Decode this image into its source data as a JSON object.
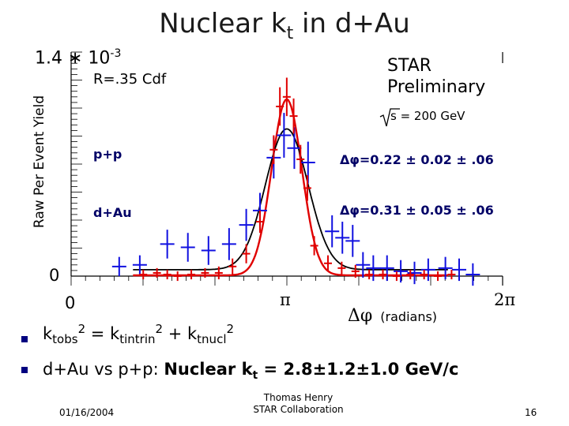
{
  "slide": {
    "title_main": "Nuclear k",
    "title_sub": "t",
    "title_rest": " in d+Au",
    "y_exponent_base": "1.4 ∗ 10",
    "y_exponent_power": "-3",
    "star_line1": "STAR",
    "star_line2": "Preliminary",
    "energy_label": "s = 200 GeV",
    "r_cdf": "R=.35 Cdf",
    "legend_pp": "p+p",
    "legend_dau": "d+Au",
    "dphi_pp": "Δφ=0.22 ± 0.02 ± .06",
    "dphi_dau": "Δφ=0.31 ± 0.05 ± .06",
    "bullet1": {
      "k1": "k",
      "s1": "tobs",
      "p1": "2",
      "eq": " = k",
      "s2": "tintrin",
      "p2": "2",
      "plus": " + k",
      "s3": "tnucl",
      "p3": "2"
    },
    "bullet2": {
      "normal": "d+Au vs p+p:  ",
      "bold1": "Nuclear k",
      "sub": "t",
      "bold2": " = 2.8±1.2±1.0 GeV/c"
    },
    "date": "01/16/2004",
    "author": "Thomas Henry",
    "collab": "STAR Collaboration",
    "page_number": "16"
  },
  "chart_data": {
    "type": "scatter",
    "title": "Nuclear kt in d+Au",
    "ylabel": "Raw Per Event Yield",
    "xlabel": "Δφ (radians)",
    "x_tick_labels": [
      "0",
      "π",
      "2π"
    ],
    "y_tick_labels": [
      "0"
    ],
    "xlim": [
      0,
      6.2832
    ],
    "ylim": [
      0,
      1.4
    ],
    "y_scale_note": "×10^-3",
    "series": [
      {
        "name": "p+p",
        "color": "#e00000",
        "x": [
          1.05,
          1.25,
          1.4,
          1.55,
          1.75,
          1.95,
          2.15,
          2.35,
          2.55,
          2.75,
          2.95,
          3.04,
          3.14,
          3.24,
          3.34,
          3.44,
          3.54,
          3.74,
          3.94,
          4.14,
          4.34,
          4.54,
          4.74,
          4.94,
          5.14,
          5.34,
          5.54
        ],
        "y": [
          0.01,
          0.02,
          0.01,
          0.0,
          0.01,
          0.02,
          0.02,
          0.06,
          0.14,
          0.34,
          0.79,
          1.06,
          1.12,
          1.0,
          0.73,
          0.55,
          0.19,
          0.08,
          0.05,
          0.03,
          0.01,
          0.01,
          0.0,
          0.01,
          0.01,
          0.0,
          0.01
        ],
        "yerr": [
          0.03,
          0.03,
          0.03,
          0.03,
          0.03,
          0.03,
          0.04,
          0.05,
          0.06,
          0.07,
          0.09,
          0.12,
          0.12,
          0.11,
          0.09,
          0.08,
          0.06,
          0.05,
          0.04,
          0.04,
          0.03,
          0.03,
          0.03,
          0.03,
          0.03,
          0.03,
          0.03
        ]
      },
      {
        "name": "d+Au",
        "color": "#1010e0",
        "x": [
          0.7,
          1.0,
          1.4,
          1.7,
          2.0,
          2.3,
          2.55,
          2.75,
          2.95,
          3.1,
          3.25,
          3.45,
          3.8,
          3.95,
          4.1,
          4.25,
          4.4,
          4.6,
          4.8,
          5.0,
          5.2,
          5.45,
          5.65,
          5.85
        ],
        "y": [
          0.06,
          0.07,
          0.2,
          0.18,
          0.16,
          0.2,
          0.32,
          0.41,
          0.74,
          0.88,
          0.8,
          0.71,
          0.28,
          0.24,
          0.22,
          0.07,
          0.05,
          0.05,
          0.03,
          0.02,
          0.04,
          0.05,
          0.04,
          0.01
        ],
        "yerr": [
          0.06,
          0.06,
          0.09,
          0.09,
          0.09,
          0.1,
          0.1,
          0.11,
          0.13,
          0.14,
          0.13,
          0.13,
          0.1,
          0.1,
          0.1,
          0.08,
          0.08,
          0.08,
          0.07,
          0.07,
          0.07,
          0.07,
          0.07,
          0.07
        ]
      }
    ],
    "fits": [
      {
        "name": "p+p gaussian fit",
        "color": "#e00000",
        "mean": 3.14,
        "sigma": 0.22,
        "amplitude": 1.1,
        "baseline": 0.005
      },
      {
        "name": "d+Au gaussian fit",
        "color": "#000000",
        "mean": 3.14,
        "sigma": 0.31,
        "amplitude": 0.88,
        "baseline": 0.04
      }
    ]
  }
}
